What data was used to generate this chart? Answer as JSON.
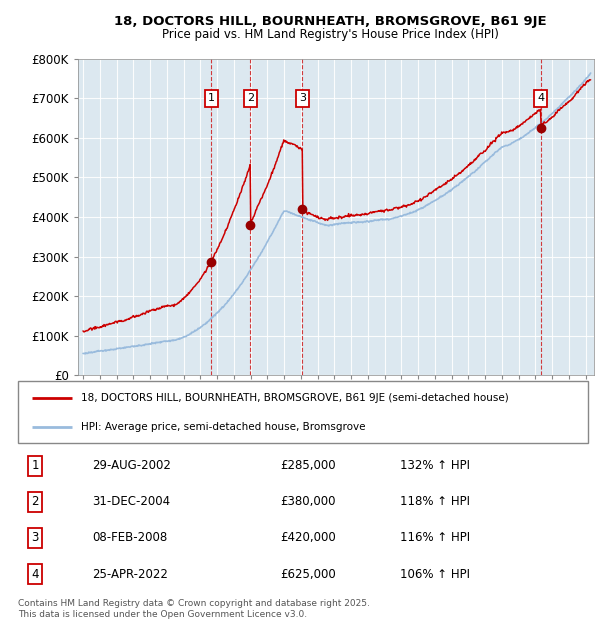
{
  "title_line1": "18, DOCTORS HILL, BOURNHEATH, BROMSGROVE, B61 9JE",
  "title_line2": "Price paid vs. HM Land Registry's House Price Index (HPI)",
  "background_color": "#ffffff",
  "plot_bg_color": "#dce8f0",
  "red_color": "#cc0000",
  "blue_color": "#99bbdd",
  "transactions": [
    {
      "num": 1,
      "date_dec": 2002.66,
      "price": 285000,
      "label": "29-AUG-2002",
      "pct": "132%"
    },
    {
      "num": 2,
      "date_dec": 2004.99,
      "price": 380000,
      "label": "31-DEC-2004",
      "pct": "118%"
    },
    {
      "num": 3,
      "date_dec": 2008.1,
      "price": 420000,
      "label": "08-FEB-2008",
      "pct": "116%"
    },
    {
      "num": 4,
      "date_dec": 2022.32,
      "price": 625000,
      "label": "25-APR-2022",
      "pct": "106%"
    }
  ],
  "legend_line1": "18, DOCTORS HILL, BOURNHEATH, BROMSGROVE, B61 9JE (semi-detached house)",
  "legend_line2": "HPI: Average price, semi-detached house, Bromsgrove",
  "table": [
    [
      "1",
      "29-AUG-2002",
      "£285,000",
      "132% ↑ HPI"
    ],
    [
      "2",
      "31-DEC-2004",
      "£380,000",
      "118% ↑ HPI"
    ],
    [
      "3",
      "08-FEB-2008",
      "£420,000",
      "116% ↑ HPI"
    ],
    [
      "4",
      "25-APR-2022",
      "£625,000",
      "106% ↑ HPI"
    ]
  ],
  "footer": "Contains HM Land Registry data © Crown copyright and database right 2025.\nThis data is licensed under the Open Government Licence v3.0.",
  "ylim": [
    0,
    800000
  ],
  "xlim_start": 1994.7,
  "xlim_end": 2025.5,
  "yticks": [
    0,
    100000,
    200000,
    300000,
    400000,
    500000,
    600000,
    700000,
    800000
  ],
  "ylabels": [
    "£0",
    "£100K",
    "£200K",
    "£300K",
    "£400K",
    "£500K",
    "£600K",
    "£700K",
    "£800K"
  ]
}
